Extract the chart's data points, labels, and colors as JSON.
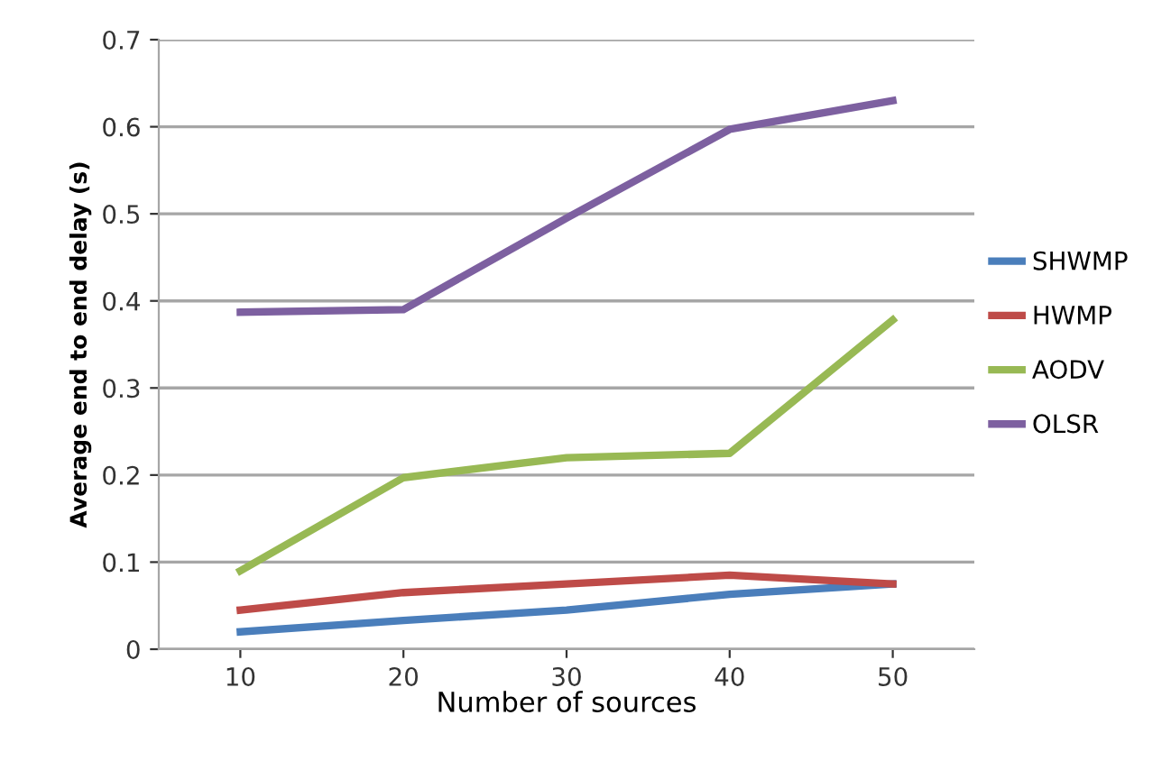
{
  "chart_data": {
    "type": "line",
    "xlabel": "Number of sources",
    "ylabel": "Average end to end delay (s)",
    "categories": [
      "10",
      "20",
      "30",
      "40",
      "50"
    ],
    "series": [
      {
        "name": "SHWMP",
        "color": "#4a7ebb",
        "values": [
          0.02,
          0.033,
          0.045,
          0.063,
          0.075
        ]
      },
      {
        "name": "HWMP",
        "color": "#be4b48",
        "values": [
          0.045,
          0.065,
          0.075,
          0.085,
          0.075
        ]
      },
      {
        "name": "AODV",
        "color": "#98b954",
        "values": [
          0.09,
          0.197,
          0.22,
          0.225,
          0.378
        ]
      },
      {
        "name": "OLSR",
        "color": "#7d60a0",
        "values": [
          0.387,
          0.39,
          0.495,
          0.597,
          0.63
        ]
      }
    ],
    "ylim": [
      0,
      0.7
    ],
    "yticks": [
      {
        "value": 0,
        "label": "0"
      },
      0.1,
      0.2,
      0.3,
      0.4,
      0.5,
      0.6,
      0.7
    ],
    "grid": "y",
    "legend": "right",
    "marker": "none",
    "line_style": "solid"
  }
}
